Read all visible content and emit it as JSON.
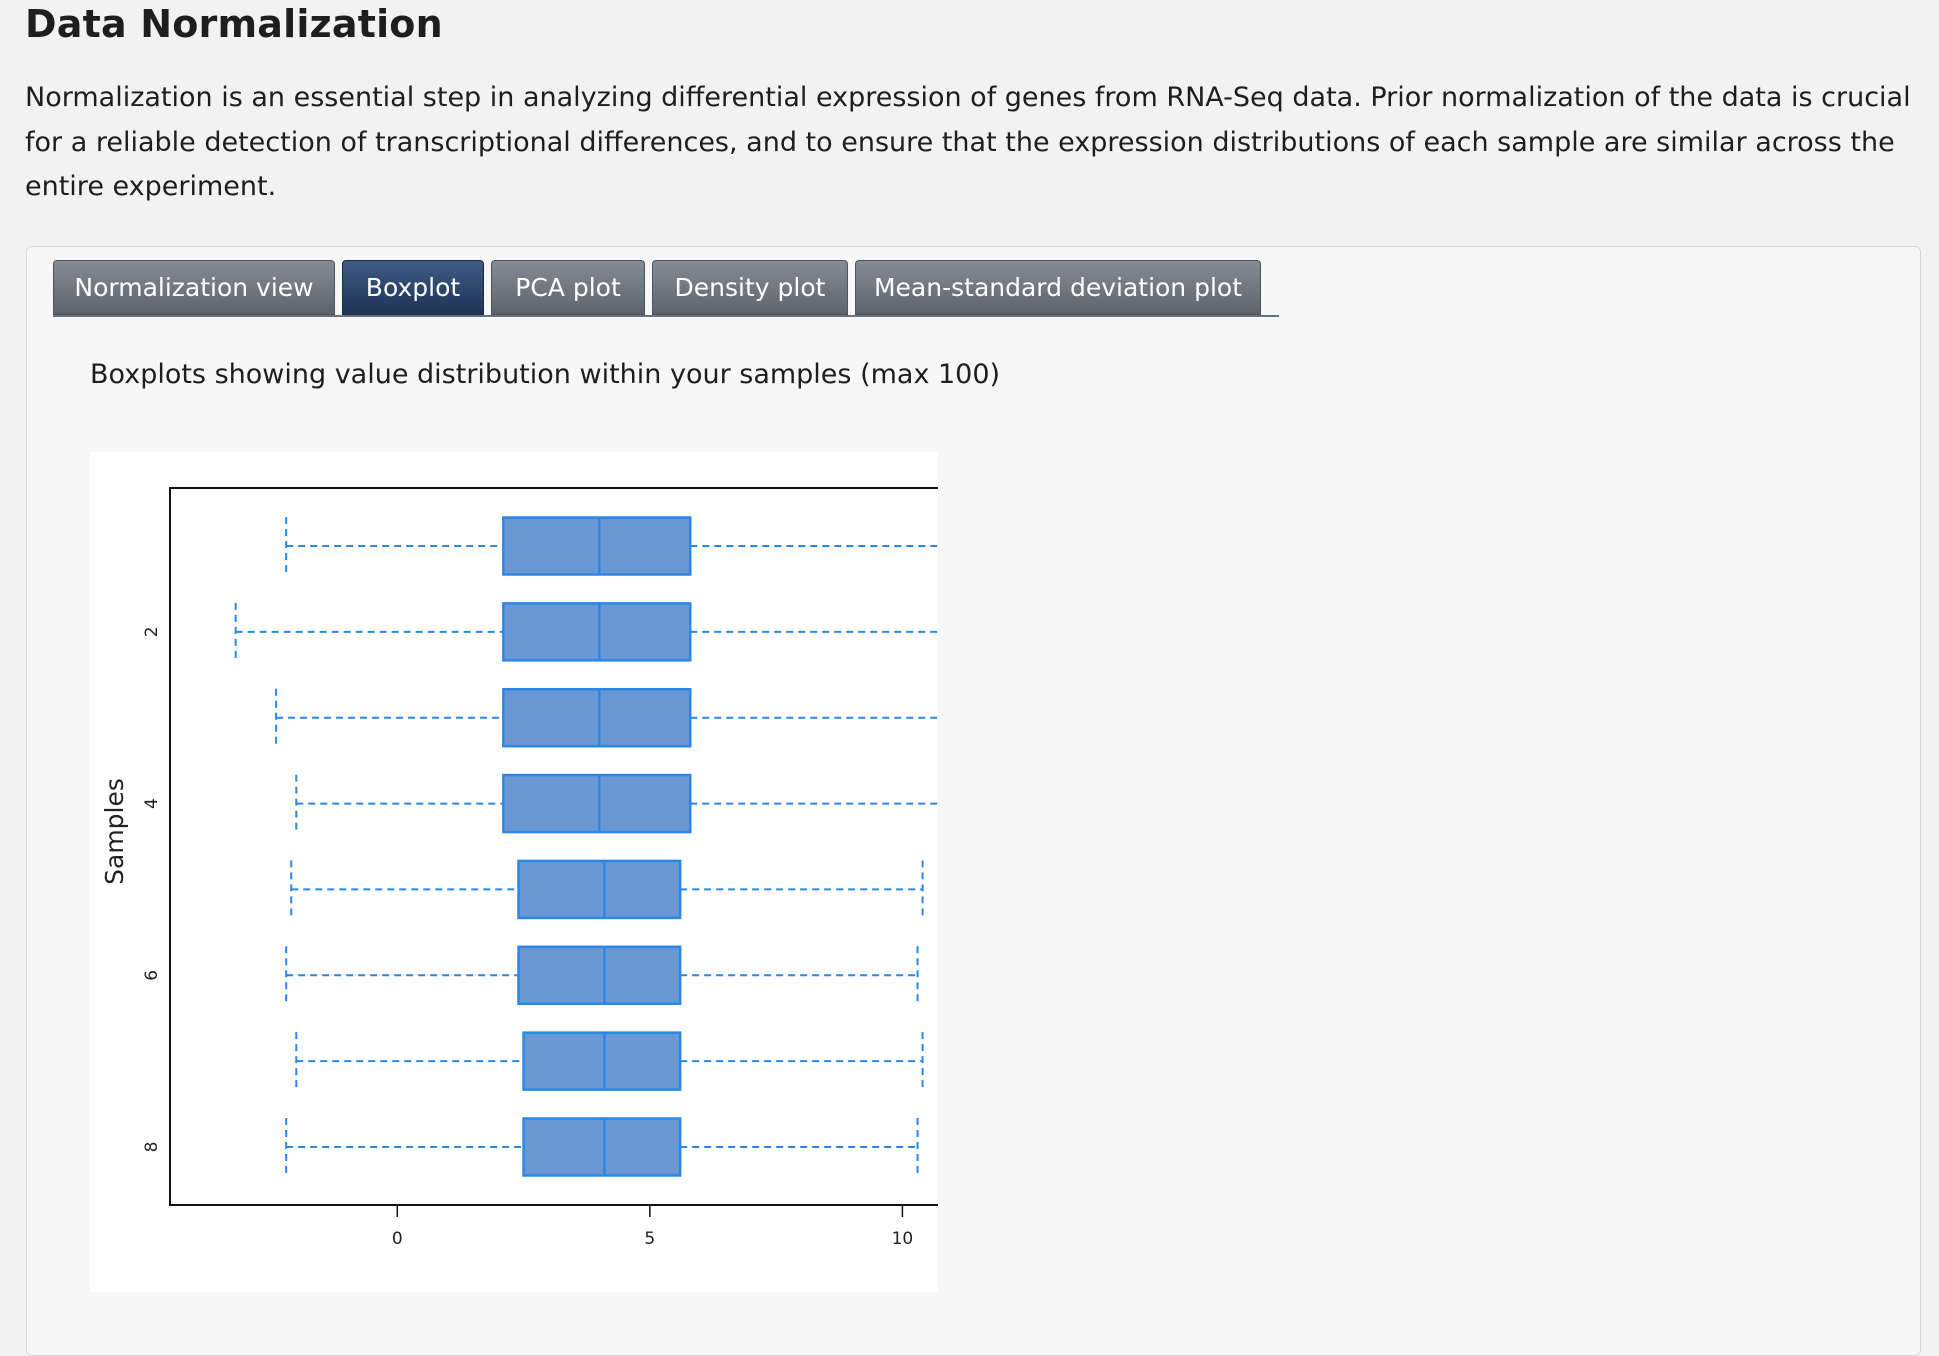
{
  "header": {
    "title": "Data Normalization",
    "intro": "Normalization is an essential step in analyzing differential expression of genes from RNA-Seq data. Prior normalization of the data is crucial for a reliable detection of transcriptional differences, and to ensure that the expression distributions of each sample are similar across the entire experiment."
  },
  "tabs": [
    {
      "label": "Normalization view",
      "active": false
    },
    {
      "label": "Boxplot",
      "active": true
    },
    {
      "label": "PCA plot",
      "active": false
    },
    {
      "label": "Density plot",
      "active": false
    },
    {
      "label": "Mean-standard deviation plot",
      "active": false
    }
  ],
  "boxplot": {
    "caption": "Boxplots showing value distribution within your samples (max 100)"
  },
  "colors": {
    "box_fill": "#6a98d2",
    "box_edge": "#2a87e8",
    "whisker": "#2a87e8",
    "active_tab": "#1e3456",
    "tab": "#6b727b"
  },
  "chart_data": {
    "type": "boxplot",
    "orientation": "horizontal",
    "title": "",
    "xlabel": "",
    "ylabel": "Samples",
    "x_ticks": [
      0,
      5,
      10
    ],
    "y_tick_labels": [
      "2",
      "4",
      "6",
      "8"
    ],
    "xlim": [
      -4.5,
      11.2
    ],
    "grid": false,
    "series": [
      {
        "sample": 1,
        "whisker_low": -2.2,
        "q1": 2.1,
        "median": 4.0,
        "q3": 5.8,
        "whisker_high": 11.3
      },
      {
        "sample": 2,
        "whisker_low": -3.2,
        "q1": 2.1,
        "median": 4.0,
        "q3": 5.8,
        "whisker_high": 11.3
      },
      {
        "sample": 3,
        "whisker_low": -2.4,
        "q1": 2.1,
        "median": 4.0,
        "q3": 5.8,
        "whisker_high": 11.3
      },
      {
        "sample": 4,
        "whisker_low": -2.0,
        "q1": 2.1,
        "median": 4.0,
        "q3": 5.8,
        "whisker_high": 11.3
      },
      {
        "sample": 5,
        "whisker_low": -2.1,
        "q1": 2.4,
        "median": 4.1,
        "q3": 5.6,
        "whisker_high": 10.4
      },
      {
        "sample": 6,
        "whisker_low": -2.2,
        "q1": 2.4,
        "median": 4.1,
        "q3": 5.6,
        "whisker_high": 10.3
      },
      {
        "sample": 7,
        "whisker_low": -2.0,
        "q1": 2.5,
        "median": 4.1,
        "q3": 5.6,
        "whisker_high": 10.4
      },
      {
        "sample": 8,
        "whisker_low": -2.2,
        "q1": 2.5,
        "median": 4.1,
        "q3": 5.6,
        "whisker_high": 10.3
      }
    ]
  }
}
